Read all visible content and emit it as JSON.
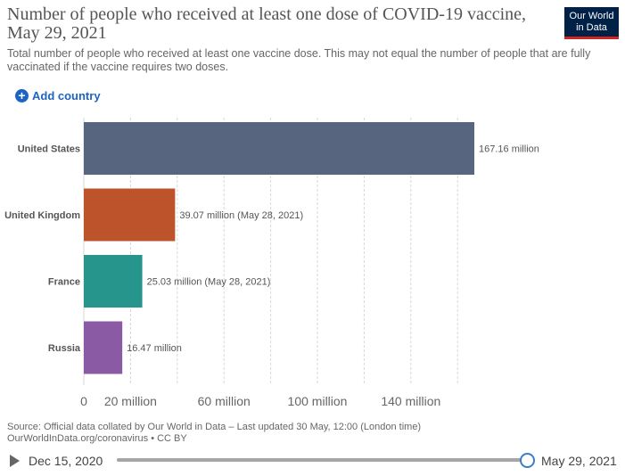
{
  "header": {
    "title": "Number of people who received at least one dose of COVID-19 vaccine, May 29, 2021",
    "subtitle": "Total number of people who received at least one vaccine dose. This may not equal the number of people that are fully vaccinated if the vaccine requires two doses.",
    "logo_line1": "Our World",
    "logo_line2": "in Data"
  },
  "controls": {
    "add_country_label": "Add country",
    "add_icon": "plus-circle-icon"
  },
  "chart_data": {
    "type": "bar",
    "orientation": "horizontal",
    "categories": [
      "United States",
      "United Kingdom",
      "France",
      "Russia"
    ],
    "values": [
      167.16,
      39.07,
      25.03,
      16.47
    ],
    "value_labels": [
      "167.16 million",
      "39.07 million (May 28, 2021)",
      "25.03 million (May 28, 2021)",
      "16.47 million"
    ],
    "colors": [
      "#58657e",
      "#bd532b",
      "#26958b",
      "#8a5aa5"
    ],
    "x_ticks": [
      0,
      20,
      60,
      100,
      140
    ],
    "x_tick_labels": [
      "0",
      "20 million",
      "60 million",
      "100 million",
      "140 million"
    ],
    "gridlines": [
      0,
      20,
      40,
      60,
      80,
      100,
      120,
      140,
      160
    ],
    "xlim": [
      0,
      167.16
    ],
    "xlabel": "",
    "ylabel": "",
    "grid": true
  },
  "footer": {
    "source_line1": "Source: Official data collated by Our World in Data – Last updated 30 May, 12:00 (London time)",
    "source_line2": "OurWorldInData.org/coronavirus • CC BY"
  },
  "timeline": {
    "start_label": "Dec 15, 2020",
    "end_label": "May 29, 2021",
    "play_icon": "play-icon"
  }
}
